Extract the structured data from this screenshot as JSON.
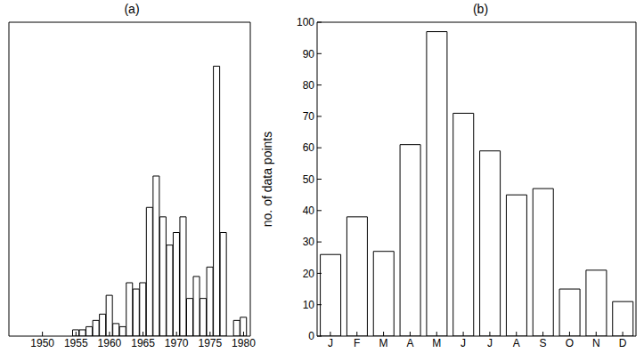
{
  "chart_data": [
    {
      "type": "bar",
      "title": "(a)",
      "x": [
        1955,
        1956,
        1957,
        1958,
        1959,
        1960,
        1961,
        1962,
        1963,
        1964,
        1965,
        1966,
        1967,
        1968,
        1969,
        1970,
        1971,
        1972,
        1973,
        1974,
        1975,
        1976,
        1977,
        1979,
        1980
      ],
      "values": [
        2,
        2,
        3,
        5,
        7,
        13,
        4,
        3,
        17,
        15,
        17,
        41,
        51,
        38,
        29,
        33,
        38,
        12,
        19,
        12,
        22,
        86,
        33,
        5,
        6
      ],
      "xlim": [
        1945,
        1981
      ],
      "xticks": [
        1950,
        1955,
        1960,
        1965,
        1970,
        1975,
        1980
      ],
      "ylim": [
        0,
        100
      ],
      "yticks": [
        0,
        10,
        20,
        30,
        40,
        50,
        60,
        70,
        80,
        90,
        100
      ],
      "tick_labels": "x",
      "color": "#ffffff"
    },
    {
      "type": "bar",
      "title": "(b)",
      "y_label": "no. of data points",
      "categories": [
        "J",
        "F",
        "M",
        "A",
        "M",
        "J",
        "J",
        "A",
        "S",
        "O",
        "N",
        "D"
      ],
      "values": [
        26,
        38,
        27,
        61,
        97,
        71,
        59,
        45,
        47,
        15,
        21,
        11
      ],
      "ylim": [
        0,
        100
      ],
      "yticks": [
        0,
        10,
        20,
        30,
        40,
        50,
        60,
        70,
        80,
        90,
        100
      ],
      "color": "#ffffff"
    }
  ]
}
